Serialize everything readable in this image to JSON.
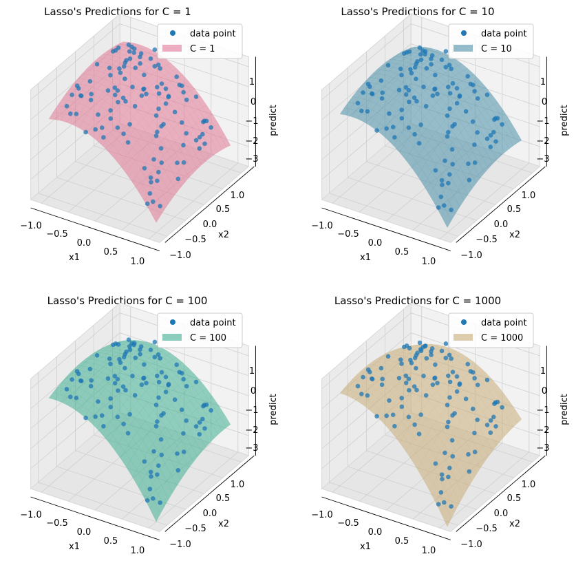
{
  "chart_data": [
    {
      "type": "surface3d",
      "title": "Lasso's Predictions for C = 1",
      "xlabel": "x1",
      "ylabel": "x2",
      "zlabel": "predict",
      "xlim": [
        -1.2,
        1.2
      ],
      "ylim": [
        -1.2,
        1.2
      ],
      "zlim": [
        -4,
        1.5
      ],
      "x_ticks": [
        "−1.0",
        "−0.5",
        "0.0",
        "0.5",
        "1.0"
      ],
      "y_ticks": [
        "−1.0",
        "−0.5",
        "0.0",
        "0.5",
        "1.0"
      ],
      "z_ticks": [
        "1",
        "0",
        "−1",
        "−2",
        "−3"
      ],
      "legend": [
        "data point",
        "C = 1"
      ],
      "legend_position": "top-right",
      "surface_color": "#e07896",
      "point_color": "#1f77b4",
      "grid": true
    },
    {
      "type": "surface3d",
      "title": "Lasso's Predictions for C = 10",
      "xlabel": "x1",
      "ylabel": "x2",
      "zlabel": "predict",
      "xlim": [
        -1.2,
        1.2
      ],
      "ylim": [
        -1.2,
        1.2
      ],
      "zlim": [
        -4,
        1.5
      ],
      "x_ticks": [
        "−1.0",
        "−0.5",
        "0.0",
        "0.5",
        "1.0"
      ],
      "y_ticks": [
        "−1.0",
        "−0.5",
        "0.0",
        "0.5",
        "1.0"
      ],
      "z_ticks": [
        "1",
        "0",
        "−1",
        "−2",
        "−3"
      ],
      "legend": [
        "data point",
        "C = 10"
      ],
      "legend_position": "top-right",
      "surface_color": "#4d8fa8",
      "point_color": "#1f77b4",
      "grid": true
    },
    {
      "type": "surface3d",
      "title": "Lasso's Predictions for C = 100",
      "xlabel": "x1",
      "ylabel": "x2",
      "zlabel": "predict",
      "xlim": [
        -1.2,
        1.2
      ],
      "ylim": [
        -1.2,
        1.2
      ],
      "zlim": [
        -4,
        1.5
      ],
      "x_ticks": [
        "−1.0",
        "−0.5",
        "0.0",
        "0.5",
        "1.0"
      ],
      "y_ticks": [
        "−1.0",
        "−0.5",
        "0.0",
        "0.5",
        "1.0"
      ],
      "z_ticks": [
        "1",
        "0",
        "−1",
        "−2",
        "−3"
      ],
      "legend": [
        "data point",
        "C = 100"
      ],
      "legend_position": "top-right",
      "surface_color": "#3fae92",
      "point_color": "#1f77b4",
      "grid": true
    },
    {
      "type": "surface3d",
      "title": "Lasso's Predictions for C = 1000",
      "xlabel": "x1",
      "ylabel": "x2",
      "zlabel": "predict",
      "xlim": [
        -1.2,
        1.2
      ],
      "ylim": [
        -1.2,
        1.2
      ],
      "zlim": [
        -4,
        1.5
      ],
      "x_ticks": [
        "−1.0",
        "−0.5",
        "0.0",
        "0.5",
        "1.0"
      ],
      "y_ticks": [
        "−1.0",
        "−0.5",
        "0.0",
        "0.5",
        "1.0"
      ],
      "z_ticks": [
        "1",
        "0",
        "−1",
        "−2",
        "−3"
      ],
      "legend": [
        "data point",
        "C = 1000"
      ],
      "legend_position": "top-right",
      "surface_color": "#c9ad78",
      "point_color": "#1f77b4",
      "grid": true
    }
  ]
}
